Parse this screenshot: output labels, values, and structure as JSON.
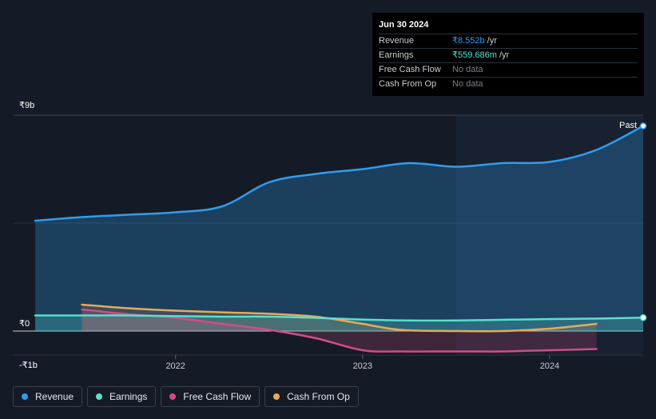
{
  "tooltip": {
    "date": "Jun 30 2024",
    "rows": [
      {
        "label": "Revenue",
        "value": "₹8.552b",
        "unit": "/yr"
      },
      {
        "label": "Earnings",
        "value": "₹559.686m",
        "unit": "/yr"
      },
      {
        "label": "Free Cash Flow",
        "value": "No data",
        "unit": ""
      },
      {
        "label": "Cash From Op",
        "value": "No data",
        "unit": ""
      }
    ]
  },
  "past_label": "Past",
  "legend": [
    {
      "label": "Revenue",
      "color": "#2e9df0"
    },
    {
      "label": "Earnings",
      "color": "#58e0cf"
    },
    {
      "label": "Free Cash Flow",
      "color": "#d14d8a"
    },
    {
      "label": "Cash From Op",
      "color": "#e9a956"
    }
  ],
  "chart_data": {
    "type": "line",
    "y_tick_labels": [
      "₹9b",
      "₹0",
      "-₹1b"
    ],
    "y_ticks": [
      9,
      0,
      -1
    ],
    "x_tick_labels": [
      "2022",
      "2023",
      "2024"
    ],
    "x_ticks": [
      2022,
      2023,
      2024
    ],
    "xlim": [
      2021.13,
      2024.5
    ],
    "ylim": [
      -1,
      9
    ],
    "grid": true,
    "past_region_start": 2023.5,
    "series": [
      {
        "name": "Revenue",
        "color": "#2e9df0",
        "x": [
          2021.25,
          2021.5,
          2021.75,
          2022.0,
          2022.25,
          2022.5,
          2022.75,
          2023.0,
          2023.25,
          2023.5,
          2023.75,
          2024.0,
          2024.25,
          2024.5
        ],
        "y": [
          4.6,
          4.75,
          4.85,
          4.95,
          5.2,
          6.2,
          6.55,
          6.75,
          7.0,
          6.85,
          7.0,
          7.05,
          7.55,
          8.55
        ]
      },
      {
        "name": "Earnings",
        "color": "#58e0cf",
        "x": [
          2021.25,
          2021.5,
          2021.75,
          2022.0,
          2022.25,
          2022.5,
          2022.75,
          2023.0,
          2023.25,
          2023.5,
          2023.75,
          2024.0,
          2024.25,
          2024.5
        ],
        "y": [
          0.65,
          0.65,
          0.65,
          0.62,
          0.6,
          0.6,
          0.55,
          0.48,
          0.44,
          0.44,
          0.47,
          0.5,
          0.52,
          0.56
        ]
      },
      {
        "name": "Free Cash Flow",
        "color": "#d14d8a",
        "x": [
          2021.5,
          2021.75,
          2022.0,
          2022.25,
          2022.5,
          2022.75,
          2023.0,
          2023.2,
          2023.5,
          2023.75,
          2024.0,
          2024.25
        ],
        "y": [
          0.9,
          0.7,
          0.55,
          0.3,
          0.05,
          -0.3,
          -0.8,
          -0.85,
          -0.85,
          -0.85,
          -0.8,
          -0.75
        ]
      },
      {
        "name": "Cash From Op",
        "color": "#e9a956",
        "x": [
          2021.5,
          2021.75,
          2022.0,
          2022.25,
          2022.5,
          2022.75,
          2023.0,
          2023.2,
          2023.5,
          2023.75,
          2024.0,
          2024.25
        ],
        "y": [
          1.1,
          0.95,
          0.85,
          0.78,
          0.72,
          0.6,
          0.3,
          0.05,
          0.0,
          0.0,
          0.1,
          0.3
        ]
      }
    ]
  }
}
